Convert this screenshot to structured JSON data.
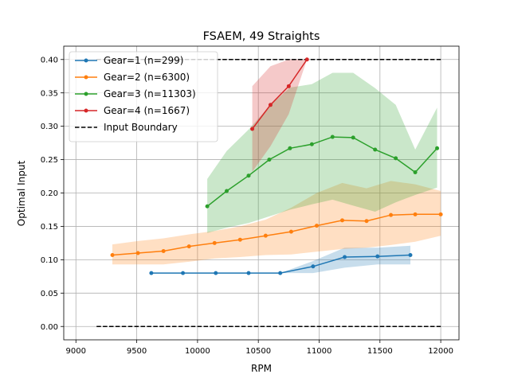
{
  "chart_data": {
    "type": "line",
    "title": "FSAEM, 49 Straights",
    "xlabel": "RPM",
    "ylabel": "Optimal Input",
    "xlim": [
      8900,
      12150
    ],
    "ylim": [
      -0.02,
      0.42
    ],
    "xticks": [
      9000,
      9500,
      10000,
      10500,
      11000,
      11500,
      12000
    ],
    "yticks": [
      0.0,
      0.05,
      0.1,
      0.15,
      0.2,
      0.25,
      0.3,
      0.35,
      0.4
    ],
    "ytick_labels": [
      "0.00",
      "0.05",
      "0.10",
      "0.15",
      "0.20",
      "0.25",
      "0.30",
      "0.35",
      "0.40"
    ],
    "grid": true,
    "legend_position": "top-left",
    "series": [
      {
        "name": "Gear=1 (n=299)",
        "color": "#1f77b4",
        "x": [
          9620,
          9880,
          10150,
          10420,
          10680,
          10950,
          11210,
          11480,
          11750
        ],
        "y": [
          0.08,
          0.08,
          0.08,
          0.08,
          0.08,
          0.09,
          0.104,
          0.105,
          0.107
        ],
        "band_x": [
          10680,
          10950,
          11210,
          11480,
          11750
        ],
        "band_low": [
          0.08,
          0.08,
          0.088,
          0.093,
          0.093
        ],
        "band_high": [
          0.08,
          0.098,
          0.118,
          0.118,
          0.121
        ]
      },
      {
        "name": "Gear=2 (n=6300)",
        "color": "#ff7f0e",
        "x": [
          9300,
          9510,
          9720,
          9930,
          10140,
          10350,
          10560,
          10770,
          10980,
          11190,
          11390,
          11590,
          11790,
          12000
        ],
        "y": [
          0.107,
          0.11,
          0.113,
          0.12,
          0.125,
          0.13,
          0.136,
          0.142,
          0.151,
          0.159,
          0.158,
          0.167,
          0.168,
          0.168
        ],
        "band_x": [
          9300,
          9510,
          9720,
          9930,
          10140,
          10350,
          10560,
          10770,
          10980,
          11190,
          11390,
          11590,
          11790,
          12000
        ],
        "band_low": [
          0.093,
          0.093,
          0.093,
          0.097,
          0.102,
          0.104,
          0.107,
          0.108,
          0.112,
          0.116,
          0.118,
          0.122,
          0.127,
          0.136
        ],
        "band_high": [
          0.123,
          0.128,
          0.132,
          0.138,
          0.143,
          0.15,
          0.16,
          0.178,
          0.2,
          0.215,
          0.207,
          0.218,
          0.213,
          0.203
        ]
      },
      {
        "name": "Gear=3 (n=11303)",
        "color": "#2ca02c",
        "x": [
          10080,
          10240,
          10420,
          10590,
          10760,
          10940,
          11110,
          11280,
          11460,
          11630,
          11790,
          11970
        ],
        "y": [
          0.18,
          0.203,
          0.226,
          0.25,
          0.267,
          0.273,
          0.284,
          0.283,
          0.265,
          0.252,
          0.231,
          0.267
        ],
        "band_x": [
          10080,
          10240,
          10420,
          10590,
          10760,
          10940,
          11110,
          11280,
          11460,
          11630,
          11790,
          11970
        ],
        "band_low": [
          0.14,
          0.148,
          0.155,
          0.165,
          0.175,
          0.183,
          0.19,
          0.181,
          0.172,
          0.186,
          0.197,
          0.208
        ],
        "band_high": [
          0.221,
          0.263,
          0.295,
          0.33,
          0.358,
          0.363,
          0.38,
          0.38,
          0.357,
          0.332,
          0.265,
          0.328
        ]
      },
      {
        "name": "Gear=4 (n=1667)",
        "color": "#d62728",
        "x": [
          10450,
          10600,
          10750,
          10900
        ],
        "y": [
          0.296,
          0.332,
          0.36,
          0.4
        ],
        "band_x": [
          10450,
          10600,
          10750,
          10900
        ],
        "band_low": [
          0.232,
          0.27,
          0.318,
          0.4
        ],
        "band_high": [
          0.36,
          0.39,
          0.4,
          0.4
        ]
      }
    ],
    "boundary": {
      "name": "Input Boundary",
      "color": "#000000",
      "x_range": [
        9170,
        12000
      ],
      "y_values": [
        0.0,
        0.4
      ]
    }
  }
}
